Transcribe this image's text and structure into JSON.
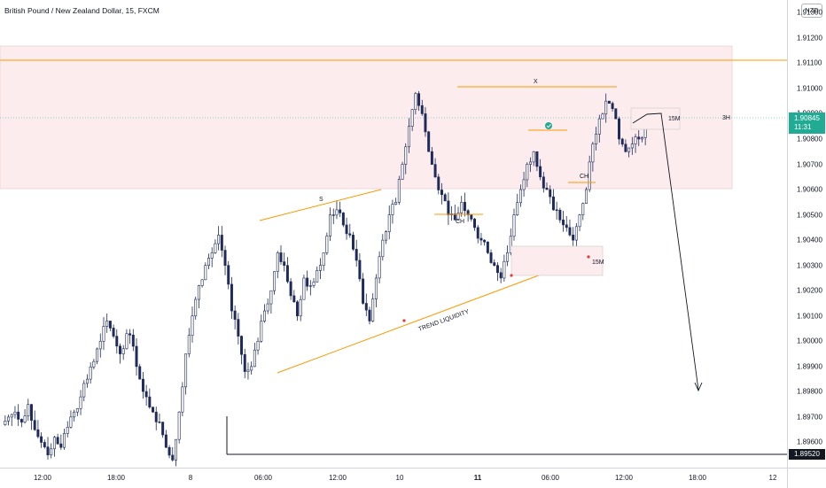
{
  "header": {
    "title": "British Pound / New Zealand Dollar, 15, FXCM"
  },
  "currency_badge": "NZD",
  "price_scale": {
    "ticks": [
      "1.91300",
      "1.91200",
      "1.91100",
      "1.91000",
      "1.90900",
      "1.90800",
      "1.90700",
      "1.90600",
      "1.90500",
      "1.90400",
      "1.90300",
      "1.90200",
      "1.90100",
      "1.90000",
      "1.89900",
      "1.89800",
      "1.89700",
      "1.89600"
    ],
    "current_price": "1.90845",
    "countdown": "11:31",
    "low_marker": "1.89520"
  },
  "time_scale": {
    "ticks": [
      {
        "label": "12:00",
        "bold": false
      },
      {
        "label": "18:00",
        "bold": false
      },
      {
        "label": "8",
        "bold": false
      },
      {
        "label": "06:00",
        "bold": false
      },
      {
        "label": "12:00",
        "bold": false
      },
      {
        "label": "10",
        "bold": false
      },
      {
        "label": "11",
        "bold": true
      },
      {
        "label": "06:00",
        "bold": false
      },
      {
        "label": "12:00",
        "bold": false
      },
      {
        "label": "18:00",
        "bold": false
      },
      {
        "label": "12",
        "bold": false
      }
    ]
  },
  "annotations": {
    "s_label": "S",
    "x_label": "X",
    "ch_label_1": "CH",
    "ch_label_2": "CH",
    "trend_label": "TREND LIQUIDITY",
    "m15_label_1": "15M",
    "m15_label_2": "15M",
    "h3_label": "3H"
  },
  "colors": {
    "bull_candle": "#ffffff",
    "bear_candle": "#1e2a5a",
    "zone_fill": "#fdecee",
    "orange": "#ff9800",
    "price_line": "#22ab94",
    "current_price_bg": "#22ab94"
  },
  "chart_data": {
    "type": "candlestick",
    "symbol": "British Pound / New Zealand Dollar",
    "timeframe": "15",
    "source": "FXCM",
    "ylim": [
      1.895,
      1.9135
    ],
    "current_price": 1.90845,
    "low_price": 1.8952,
    "high": 1.9101,
    "close_points": [
      1.897,
      1.8972,
      1.8968,
      1.8975,
      1.8965,
      1.896,
      1.8955,
      1.8962,
      1.8958,
      1.8966,
      1.8972,
      1.8978,
      1.8985,
      1.8992,
      1.9,
      1.9008,
      1.9002,
      1.8995,
      1.9003,
      1.8998,
      1.8985,
      1.8978,
      1.8972,
      1.8968,
      1.8958,
      1.8953,
      1.8972,
      1.8995,
      1.901,
      1.9022,
      1.903,
      1.9035,
      1.9042,
      1.903,
      1.9012,
      1.9002,
      1.8988,
      1.899,
      1.9,
      1.9012,
      1.902,
      1.9035,
      1.903,
      1.9018,
      1.901,
      1.9025,
      1.9022,
      1.9028,
      1.9035,
      1.905,
      1.9052,
      1.9046,
      1.9042,
      1.9032,
      1.9015,
      1.9008,
      1.9025,
      1.904,
      1.905,
      1.9055,
      1.907,
      1.9085,
      1.9098,
      1.909,
      1.9075,
      1.9065,
      1.9058,
      1.905,
      1.9048,
      1.9055,
      1.905,
      1.9045,
      1.904,
      1.9035,
      1.903,
      1.9025,
      1.9035,
      1.905,
      1.906,
      1.907,
      1.9075,
      1.9065,
      1.906,
      1.9052,
      1.9048,
      1.9045,
      1.904,
      1.905,
      1.906,
      1.9078,
      1.9088,
      1.9095,
      1.9092,
      1.908,
      1.9075,
      1.9078,
      1.908,
      1.9085
    ],
    "levels": [
      {
        "name": "resistance-line",
        "price": 1.9108
      },
      {
        "name": "current-price-line",
        "price": 1.90845
      },
      {
        "name": "low-line",
        "price": 1.8952
      }
    ],
    "zones": [
      {
        "name": "supply-zone",
        "from": 1.9057,
        "to": 1.9113
      }
    ]
  }
}
